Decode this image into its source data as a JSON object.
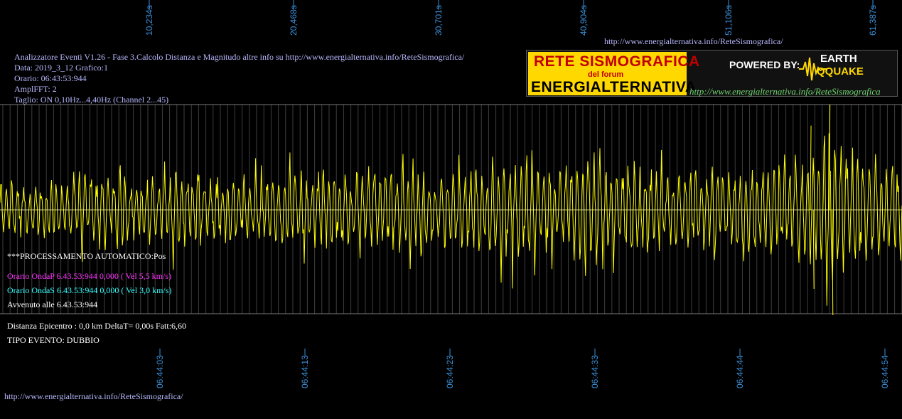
{
  "header": {
    "info_lines": [
      "Analizzatore Eventi V1.26 - Fase 3.Calcolo Distanza e Magnitudo altre info su http://www.energialternativa.info/ReteSismografica/",
      "Data: 2019_3_12 Grafico:1",
      "Orario: 06:43:53:944",
      "AmplFFT: 2",
      "Taglio: ON 0,10Hz...4,40Hz       (Channel 2...45)"
    ],
    "top_url": "http://www.energialternativa.info/ReteSismografica/"
  },
  "logo": {
    "title": "RETE SISMOGRAFICA",
    "subtitle": "del forum",
    "brand": "ENERGIALTERNATIVA",
    "powered_by": "POWERED BY:",
    "earth": "EARTH",
    "quake": "QQUAKE",
    "url": "http://www.energialternativa.info/ReteSismografica"
  },
  "processing": {
    "auto": "***PROCESSAMENTO AUTOMATICO:Pos",
    "p_wave": "Orario OndaP 6.43.53:944  0,000 ( Vel 5,5 km/s)",
    "s_wave": "Orario OndaS 6.43.53:944  0,000 ( Vel 3,0 km/s)",
    "occurred": "Avvenuto alle 6.43.53:944",
    "distance": "Distanza Epicentro : 0,0 km DeltaT= 0,00s  Fatt:6,60",
    "event_type": "TIPO EVENTO: DUBBIO"
  },
  "footer": {
    "url": "http://www.energialternativa.info/ReteSismografica/"
  },
  "colors": {
    "background": "#000000",
    "trace": "#ffff00",
    "grid": "#7a7a7a",
    "axis_label": "#3a8fd8",
    "info_text": "#b8b8ff",
    "p_wave": "#ff33ff",
    "s_wave": "#33ffff",
    "white_text": "#ffffff"
  },
  "chart_data": {
    "type": "line",
    "title": "",
    "xlabel": "",
    "ylabel": "",
    "top_tick_labels": [
      "10,234s",
      "20,468s",
      "30,701s",
      "40,904s",
      "51,106s",
      "61,387s"
    ],
    "bottom_tick_labels": [
      "06:44:03",
      "06:44:13",
      "06:44:23",
      "06:44:33",
      "06:44:44",
      "06:44:54"
    ],
    "grid": true,
    "xlim": [
      0,
      62
    ],
    "ylim": [
      -1,
      1
    ],
    "series": [
      {
        "color": "#ffff00",
        "seed": 20190312,
        "envelope": [
          [
            0,
            0.35
          ],
          [
            4,
            0.4
          ],
          [
            6,
            0.55
          ],
          [
            9,
            0.45
          ],
          [
            12,
            0.6
          ],
          [
            16,
            0.45
          ],
          [
            20,
            0.55
          ],
          [
            25,
            0.5
          ],
          [
            28,
            0.65
          ],
          [
            31,
            0.5
          ],
          [
            36,
            0.75
          ],
          [
            38,
            0.6
          ],
          [
            42,
            0.8
          ],
          [
            44,
            0.6
          ],
          [
            48,
            0.55
          ],
          [
            52,
            0.6
          ],
          [
            55,
            0.75
          ],
          [
            57,
            1.0
          ],
          [
            59,
            0.85
          ],
          [
            62,
            0.6
          ]
        ]
      }
    ]
  }
}
